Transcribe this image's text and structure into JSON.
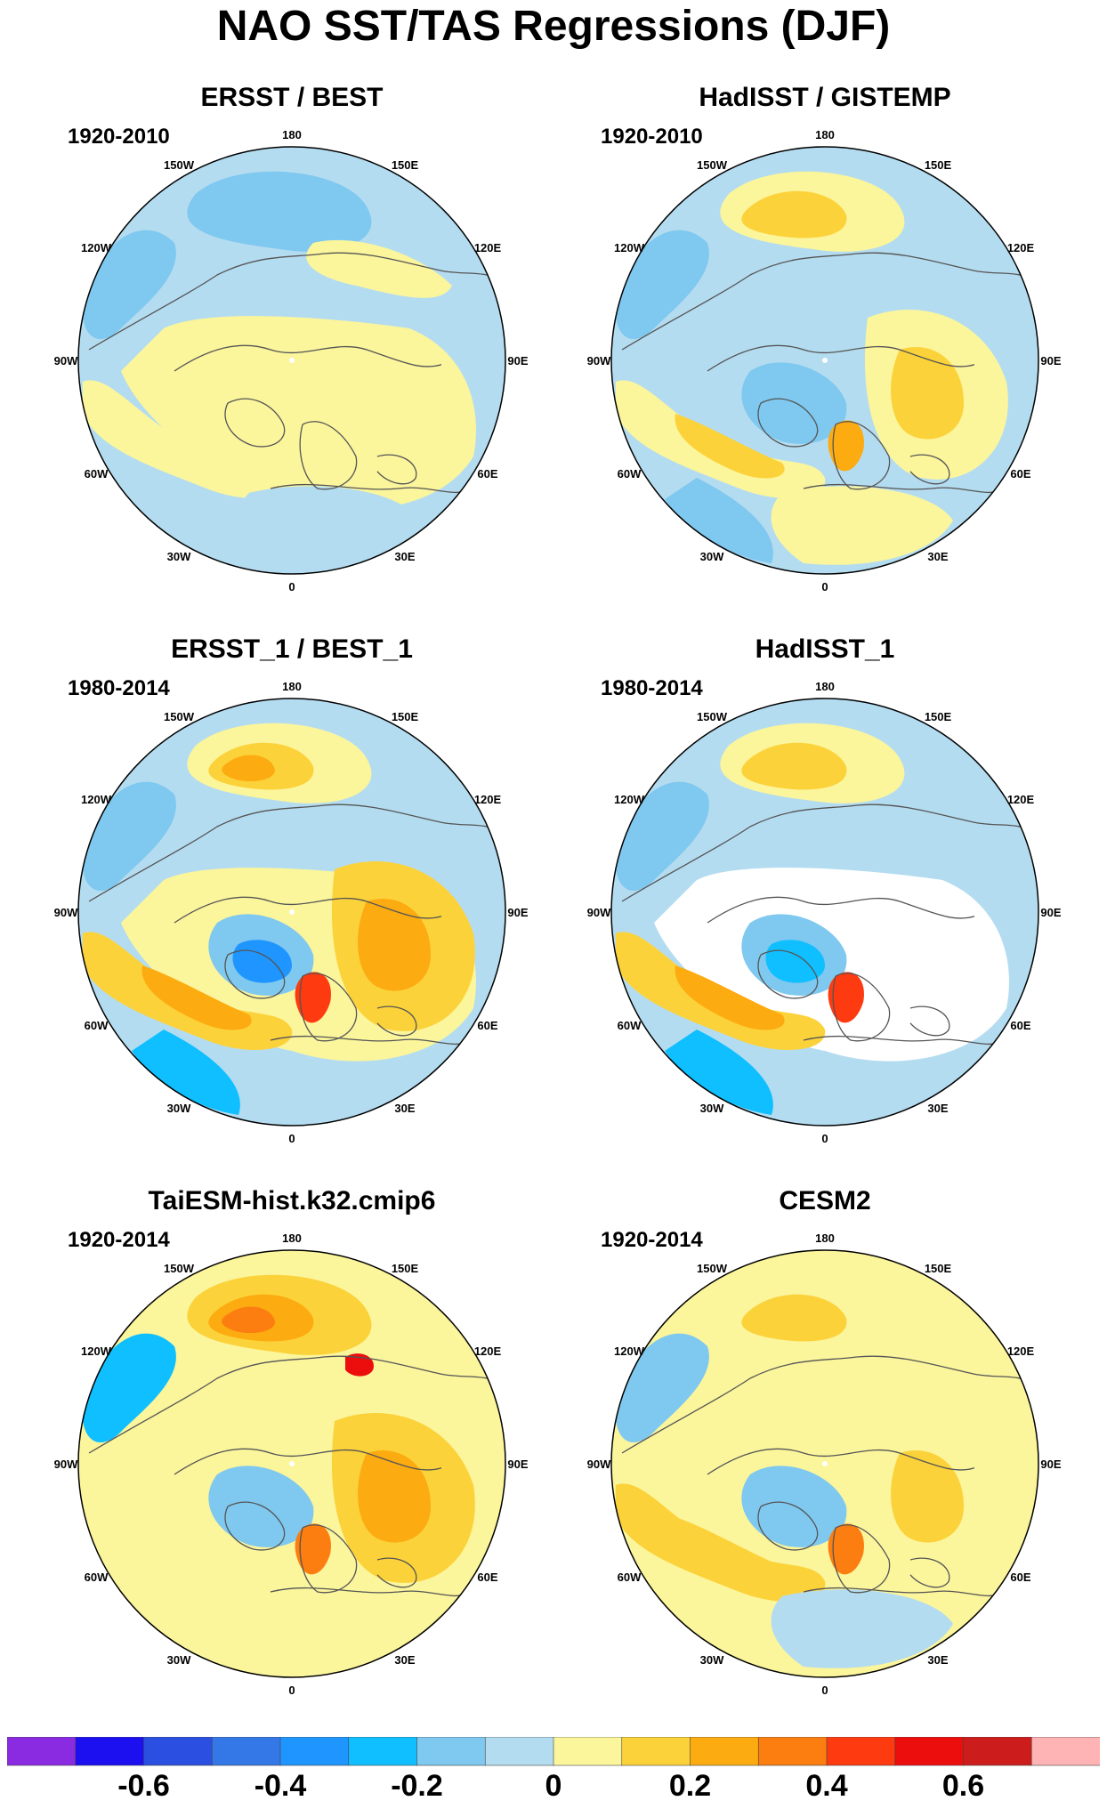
{
  "title": "NAO SST/TAS Regressions (DJF)",
  "colors": {
    "levels": [
      "#8a2be2",
      "#1c10f0",
      "#2b4fe0",
      "#3478e8",
      "#1f95ff",
      "#0fbfff",
      "#7fc8ef",
      "#b4dcf0",
      "#fbf59c",
      "#fcd23a",
      "#fcab10",
      "#fc7d10",
      "#fd3a10",
      "#ec0d0d",
      "#cc1c1c",
      "#feb4b4"
    ],
    "land_outline": "#555555",
    "missing": "#ffffff"
  },
  "colorbar": {
    "labels": [
      "-0.6",
      "-0.4",
      "-0.2",
      "0",
      "0.2",
      "0.4",
      "0.6"
    ]
  },
  "longitude_labels": [
    "180",
    "150E",
    "120E",
    "90E",
    "60E",
    "30E",
    "0",
    "30W",
    "60W",
    "90W",
    "120W",
    "150W"
  ],
  "panels": [
    {
      "title": "ERSST / BEST",
      "period": "1920-2010",
      "variant": "ersst"
    },
    {
      "title": "HadISST / GISTEMP",
      "period": "1920-2010",
      "variant": "hadisst"
    },
    {
      "title": "ERSST_1 / BEST_1",
      "period": "1980-2014",
      "variant": "ersst1"
    },
    {
      "title": "HadISST_1",
      "period": "1980-2014",
      "variant": "hadisst1"
    },
    {
      "title": "TaiESM-hist.k32.cmip6",
      "period": "1920-2014",
      "variant": "taiesm"
    },
    {
      "title": "CESM2",
      "period": "1920-2014",
      "variant": "cesm2"
    }
  ]
}
